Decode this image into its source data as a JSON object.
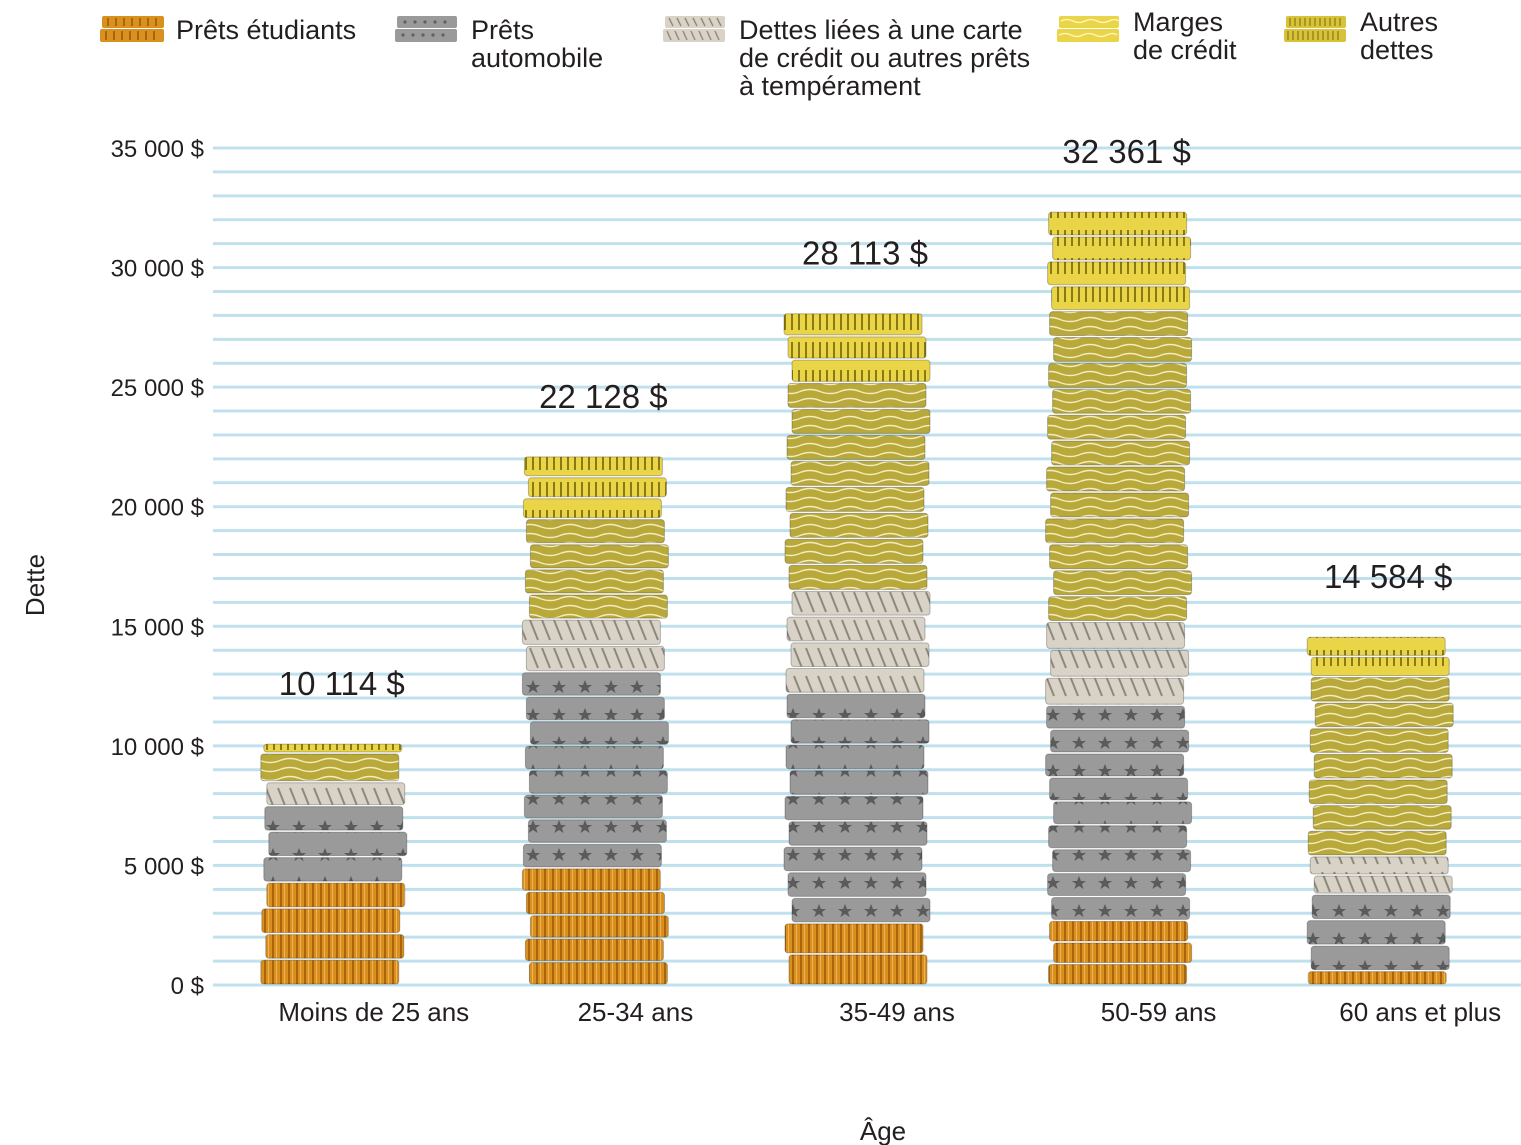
{
  "chart_data": {
    "type": "bar",
    "stacked": true,
    "title": "",
    "xlabel": "Âge",
    "ylabel": "Dette",
    "ylim": [
      0,
      35000
    ],
    "y_ticks": [
      "0 $",
      "5 000 $",
      "10 000 $",
      "15 000 $",
      "20 000 $",
      "25 000 $",
      "30 000 $",
      "35 000 $"
    ],
    "legend_position": "top",
    "categories": [
      "Moins de 25 ans",
      "25-34 ans",
      "35-49 ans",
      "50-59 ans",
      "60 ans et plus"
    ],
    "totals": [
      10114,
      22128,
      28113,
      32361,
      14584
    ],
    "total_labels": [
      "10 114 $",
      "22 128 $",
      "28 113 $",
      "32 361 $",
      "14 584 $"
    ],
    "series": [
      {
        "name": "Prêts étudiants",
        "color": "#d9901f",
        "values": [
          4300,
          4900,
          2600,
          2700,
          600
        ]
      },
      {
        "name": "Prêts automobile",
        "color": "#9a9a9a",
        "values": [
          3200,
          8200,
          9600,
          9000,
          3200
        ]
      },
      {
        "name": "Dettes liées à une carte de crédit ou autres prêts à tempérament",
        "color": "#d9d2c6",
        "values": [
          1000,
          2200,
          4300,
          3500,
          1600
        ]
      },
      {
        "name": "Marges de crédit",
        "color": "#b8a93a",
        "values": [
          1200,
          4200,
          8700,
          13000,
          7500
        ]
      },
      {
        "name": "Autres dettes",
        "color": "#ead448",
        "values": [
          414,
          2628,
          2913,
          4161,
          1684
        ]
      }
    ]
  },
  "legend": [
    {
      "label": "Prêts étudiants",
      "icon": "coin-stack-orange-icon"
    },
    {
      "label": "Prêts\nautomobile",
      "icon": "coin-stack-gray-icon"
    },
    {
      "label": "Dettes liées à une carte\nde crédit ou autres prêts\nà tempérament",
      "icon": "coin-stack-beige-icon"
    },
    {
      "label": "Marges\nde crédit",
      "icon": "coin-stack-yellow-icon"
    },
    {
      "label": "Autres\ndettes",
      "icon": "coin-stack-olive-icon"
    }
  ]
}
